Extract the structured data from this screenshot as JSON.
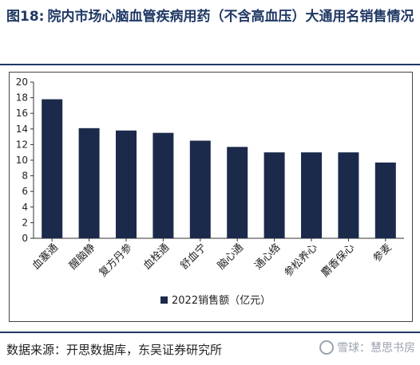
{
  "header": {
    "figure_number": "图18:",
    "title_text": "院内市场心脑血管疾病用药（不含高血压）大通用名销售情况"
  },
  "footer": {
    "source": "数据来源：开思数据库，东吴证券研究所",
    "watermark": "雪球：慧思书房"
  },
  "colors": {
    "bar": "#1b2a4a",
    "accent": "#1f3864"
  },
  "chart_data": {
    "type": "bar",
    "categories": [
      "血塞通",
      "醒脑静",
      "复方丹参",
      "血栓通",
      "舒血宁",
      "脑心通",
      "通心络",
      "参松养心",
      "麝香保心",
      "参麦"
    ],
    "series": [
      {
        "name": "2022销售额（亿元）",
        "values": [
          17.8,
          14.1,
          13.8,
          13.5,
          12.5,
          11.7,
          11.0,
          11.0,
          11.0,
          9.7
        ]
      }
    ],
    "ylim": [
      0,
      20
    ],
    "yticks": [
      0,
      2,
      4,
      6,
      8,
      10,
      12,
      14,
      16,
      18,
      20
    ],
    "grid": false,
    "legend": "bottom-center",
    "title": "",
    "xlabel": "",
    "ylabel": ""
  }
}
